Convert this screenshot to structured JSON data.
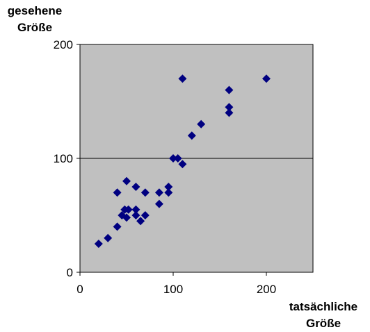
{
  "chart_data": {
    "type": "scatter",
    "ylabel_lines": [
      "gesehene",
      "Größe"
    ],
    "xlabel_lines": [
      "tatsächliche",
      "Größe"
    ],
    "xlim": [
      0,
      250
    ],
    "ylim": [
      0,
      200
    ],
    "xticks": [
      0,
      100,
      200
    ],
    "yticks": [
      0,
      100,
      200
    ],
    "grid": "horizontal",
    "plot_background": "#c0c0c0",
    "marker_color": "#000080",
    "marker": "diamond",
    "points": [
      {
        "x": 20,
        "y": 25
      },
      {
        "x": 30,
        "y": 30
      },
      {
        "x": 40,
        "y": 40
      },
      {
        "x": 40,
        "y": 70
      },
      {
        "x": 45,
        "y": 50
      },
      {
        "x": 48,
        "y": 55
      },
      {
        "x": 50,
        "y": 48
      },
      {
        "x": 50,
        "y": 80
      },
      {
        "x": 52,
        "y": 55
      },
      {
        "x": 60,
        "y": 50
      },
      {
        "x": 60,
        "y": 55
      },
      {
        "x": 60,
        "y": 75
      },
      {
        "x": 65,
        "y": 45
      },
      {
        "x": 70,
        "y": 50
      },
      {
        "x": 70,
        "y": 70
      },
      {
        "x": 85,
        "y": 60
      },
      {
        "x": 85,
        "y": 70
      },
      {
        "x": 95,
        "y": 70
      },
      {
        "x": 95,
        "y": 75
      },
      {
        "x": 100,
        "y": 100
      },
      {
        "x": 105,
        "y": 100
      },
      {
        "x": 110,
        "y": 95
      },
      {
        "x": 110,
        "y": 170
      },
      {
        "x": 120,
        "y": 120
      },
      {
        "x": 130,
        "y": 130
      },
      {
        "x": 160,
        "y": 140
      },
      {
        "x": 160,
        "y": 145
      },
      {
        "x": 160,
        "y": 160
      },
      {
        "x": 200,
        "y": 170
      }
    ]
  }
}
